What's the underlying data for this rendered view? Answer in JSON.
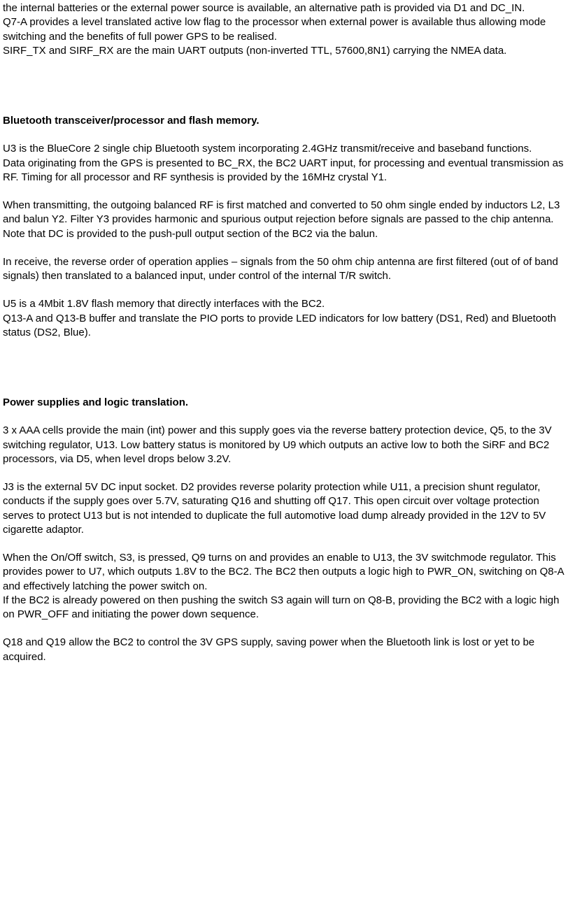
{
  "intro": {
    "p1": "the internal batteries or the external power source is available, an alternative path is provided via D1 and DC_IN.",
    "p2": "Q7-A provides a level translated active low flag to the processor when external power is available thus allowing mode switching and the benefits of full power GPS to be realised.",
    "p3": "SIRF_TX and SIRF_RX are the main UART outputs (non-inverted TTL, 57600,8N1) carrying the NMEA data."
  },
  "section1": {
    "heading": "Bluetooth transceiver/processor and flash memory.",
    "p1": "U3 is the BlueCore 2 single chip Bluetooth system incorporating 2.4GHz transmit/receive and baseband functions.",
    "p2": "Data originating from the GPS is presented to BC_RX, the BC2 UART input, for processing and eventual transmission as RF.  Timing for all processor and RF synthesis is provided by the 16MHz crystal Y1.",
    "p3": " When transmitting, the outgoing balanced RF is first matched and converted to 50 ohm single ended by inductors L2, L3 and balun Y2.   Filter Y3 provides harmonic and spurious output rejection before signals are passed to the chip antenna.  Note that DC is provided to the push-pull output section of the BC2 via the balun.",
    "p4": "In receive, the reverse order of operation applies – signals from the 50 ohm chip antenna are first filtered (out of of band signals) then translated to a balanced input, under control of the internal T/R switch.",
    "p5": "U5 is a 4Mbit 1.8V flash memory that directly interfaces with the BC2.",
    "p6": "Q13-A and Q13-B buffer and translate the PIO ports to provide LED indicators for low battery (DS1, Red) and Bluetooth status (DS2, Blue)."
  },
  "section2": {
    "heading": "Power supplies and logic translation.",
    "p1": "3 x AAA cells provide the main (int) power and this supply goes via the reverse battery protection device, Q5, to the 3V switching regulator, U13.  Low battery status is monitored by U9 which outputs an active low to both the SiRF and BC2 processors, via D5, when level drops below 3.2V.",
    "p2": "J3 is the external 5V DC input socket.  D2 provides reverse polarity protection while U11, a precision shunt regulator, conducts if the supply goes over 5.7V, saturating Q16 and shutting off Q17.  This open circuit over voltage protection serves to protect U13 but is not intended to duplicate the full automotive load dump already provided in the 12V to 5V cigarette adaptor.",
    "p3": "When the On/Off switch, S3, is pressed, Q9 turns on and provides an enable to U13, the 3V switchmode regulator.  This provides power to U7, which outputs 1.8V to the BC2.  The BC2 then outputs a logic high to PWR_ON, switching on Q8-A and effectively latching the power switch on.",
    "p4": "If the BC2 is already powered on then pushing the switch S3 again will turn on Q8-B, providing the BC2 with a logic high on PWR_OFF and initiating the power down sequence.",
    "p5": "Q18 and Q19 allow the BC2 to control the 3V GPS supply, saving power when the Bluetooth link is lost or yet to be acquired."
  }
}
